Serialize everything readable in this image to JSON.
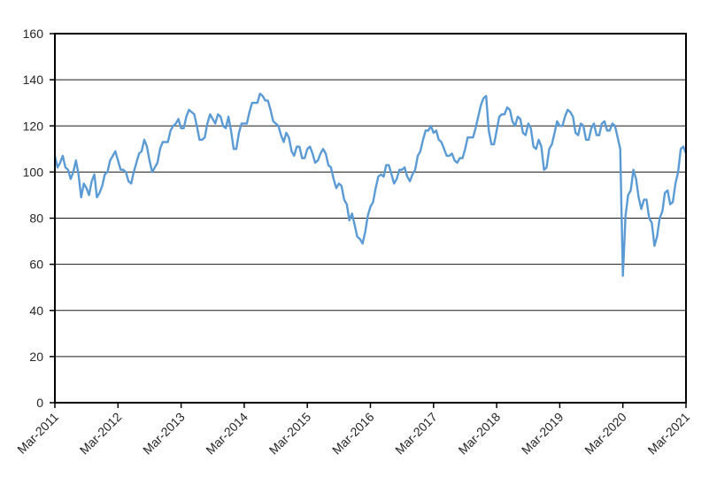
{
  "figure": {
    "background": "#ffffff",
    "title": "",
    "legend": "none"
  },
  "chart_data": {
    "type": "line",
    "title": "",
    "xlabel": "",
    "ylabel": "",
    "grid": "horizontal",
    "legend_position": "none",
    "line_color": "#5B9BD5",
    "axis_color": "#000000",
    "gridline_color": "#1a1a1a",
    "label_color": "#262626",
    "plot_background": "#ffffff",
    "ylim": [
      0,
      160
    ],
    "y_ticks": [
      0,
      20,
      40,
      60,
      80,
      100,
      120,
      140,
      160
    ],
    "x_tick_labels": [
      "Mar-2011",
      "Mar-2012",
      "Mar-2013",
      "Mar-2014",
      "Mar-2015",
      "Mar-2016",
      "Mar-2017",
      "Mar-2018",
      "Mar-2019",
      "Mar-2020",
      "Mar-2021"
    ],
    "x_label_rotation_deg": -45,
    "points_per_year": 24,
    "x_span_years": 10,
    "values": [
      107,
      102,
      104,
      107,
      102,
      101,
      97,
      100,
      105,
      99,
      89,
      95,
      93,
      90,
      96,
      99,
      89,
      91,
      94,
      99,
      100,
      105,
      107,
      109,
      105,
      101,
      101,
      100,
      96,
      95,
      100,
      104,
      108,
      109,
      114,
      111,
      105,
      100,
      102,
      104,
      110,
      113,
      113,
      113,
      118,
      120,
      121,
      123,
      119,
      119,
      124,
      127,
      126,
      125,
      120,
      114,
      114,
      115,
      121,
      125,
      123,
      121,
      125,
      124,
      120,
      119,
      124,
      118,
      110,
      110,
      117,
      121,
      121,
      121,
      126,
      130,
      130,
      130,
      134,
      133,
      131,
      131,
      127,
      122,
      121,
      120,
      116,
      113,
      117,
      115,
      109,
      107,
      111,
      111,
      106,
      106,
      110,
      111,
      108,
      104,
      105,
      108,
      110,
      108,
      103,
      102,
      97,
      93,
      95,
      94,
      88,
      86,
      79,
      82,
      77,
      72,
      71,
      69,
      74,
      81,
      85,
      87,
      93,
      98,
      99,
      98,
      103,
      103,
      99,
      95,
      97,
      101,
      101,
      102,
      98,
      96,
      99,
      101,
      107,
      109,
      114,
      118,
      118,
      120,
      117,
      118,
      114,
      113,
      110,
      107,
      107,
      108,
      105,
      104,
      106,
      106,
      110,
      115,
      115,
      115,
      119,
      124,
      129,
      132,
      133,
      118,
      112,
      112,
      118,
      124,
      125,
      125,
      128,
      127,
      122,
      120,
      124,
      123,
      117,
      116,
      121,
      119,
      111,
      110,
      114,
      111,
      101,
      102,
      110,
      112,
      117,
      122,
      120,
      120,
      124,
      127,
      126,
      124,
      117,
      116,
      121,
      120,
      114,
      114,
      119,
      121,
      116,
      116,
      121,
      122,
      118,
      118,
      121,
      120,
      115,
      110,
      55,
      81,
      90,
      92,
      101,
      97,
      89,
      84,
      88,
      88,
      80,
      78,
      68,
      72,
      80,
      83,
      91,
      92,
      86,
      87,
      95,
      100,
      110,
      111,
      108
    ]
  }
}
